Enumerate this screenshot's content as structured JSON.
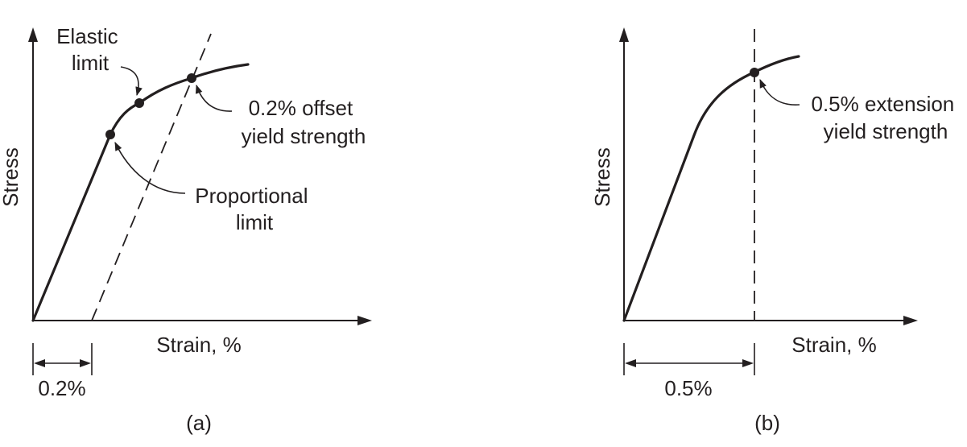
{
  "panel_a": {
    "caption": "(a)",
    "ylabel": "Stress",
    "xlabel": "Strain, %",
    "offset_label": "0.2%",
    "annotations": {
      "elastic_limit": [
        "Elastic",
        "limit"
      ],
      "offset_yield": [
        "0.2% offset",
        "yield strength"
      ],
      "proportional_limit": [
        "Proportional",
        "limit"
      ]
    }
  },
  "panel_b": {
    "caption": "(b)",
    "ylabel": "Stress",
    "xlabel": "Strain, %",
    "extension_label": "0.5%",
    "annotations": {
      "extension_yield": [
        "0.5% extension",
        "yield strength"
      ]
    }
  }
}
